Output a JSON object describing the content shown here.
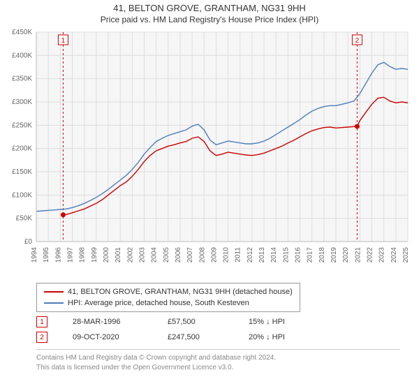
{
  "titles": {
    "main": "41, BELTON GROVE, GRANTHAM, NG31 9HH",
    "sub": "Price paid vs. HM Land Registry's House Price Index (HPI)"
  },
  "chart": {
    "type": "line",
    "background_color": "#f6f6f6",
    "plot_background": "#f6f6f6",
    "grid_color": "#dddddd",
    "axis_font_size": 10,
    "axis_color": "#666666",
    "y": {
      "label_prefix": "£",
      "min": 0,
      "max": 450000,
      "tick_step": 50000,
      "ticks": [
        "£0",
        "£50K",
        "£100K",
        "£150K",
        "£200K",
        "£250K",
        "£300K",
        "£350K",
        "£400K",
        "£450K"
      ]
    },
    "x": {
      "min": 1994,
      "max": 2025,
      "tick_step": 1,
      "ticks": [
        "1994",
        "1995",
        "1996",
        "1997",
        "1998",
        "1999",
        "2000",
        "2001",
        "2002",
        "2003",
        "2004",
        "2005",
        "2006",
        "2007",
        "2008",
        "2009",
        "2010",
        "2011",
        "2012",
        "2013",
        "2014",
        "2015",
        "2016",
        "2017",
        "2018",
        "2019",
        "2020",
        "2021",
        "2022",
        "2023",
        "2024",
        "2025"
      ]
    },
    "series": [
      {
        "name": "price_paid",
        "label": "41, BELTON GROVE, GRANTHAM, NG31 9HH (detached house)",
        "color": "#cc0000",
        "line_width": 1.4,
        "data": [
          [
            1996.24,
            57500
          ],
          [
            1996.5,
            58000
          ],
          [
            1997,
            62000
          ],
          [
            1997.5,
            66000
          ],
          [
            1998,
            70000
          ],
          [
            1998.5,
            76000
          ],
          [
            1999,
            82000
          ],
          [
            1999.5,
            90000
          ],
          [
            2000,
            100000
          ],
          [
            2000.5,
            110000
          ],
          [
            2001,
            120000
          ],
          [
            2001.5,
            128000
          ],
          [
            2002,
            140000
          ],
          [
            2002.5,
            155000
          ],
          [
            2003,
            172000
          ],
          [
            2003.5,
            185000
          ],
          [
            2004,
            195000
          ],
          [
            2004.5,
            200000
          ],
          [
            2005,
            205000
          ],
          [
            2005.5,
            208000
          ],
          [
            2006,
            212000
          ],
          [
            2006.5,
            215000
          ],
          [
            2007,
            222000
          ],
          [
            2007.5,
            225000
          ],
          [
            2008,
            215000
          ],
          [
            2008.5,
            195000
          ],
          [
            2009,
            185000
          ],
          [
            2009.5,
            188000
          ],
          [
            2010,
            192000
          ],
          [
            2010.5,
            190000
          ],
          [
            2011,
            188000
          ],
          [
            2011.5,
            186000
          ],
          [
            2012,
            185000
          ],
          [
            2012.5,
            187000
          ],
          [
            2013,
            190000
          ],
          [
            2013.5,
            195000
          ],
          [
            2014,
            200000
          ],
          [
            2014.5,
            205000
          ],
          [
            2015,
            212000
          ],
          [
            2015.5,
            218000
          ],
          [
            2016,
            225000
          ],
          [
            2016.5,
            232000
          ],
          [
            2017,
            238000
          ],
          [
            2017.5,
            242000
          ],
          [
            2018,
            245000
          ],
          [
            2018.5,
            246000
          ],
          [
            2019,
            244000
          ],
          [
            2019.5,
            245000
          ],
          [
            2020,
            246000
          ],
          [
            2020.5,
            247000
          ],
          [
            2020.77,
            247500
          ],
          [
            2021,
            260000
          ],
          [
            2021.5,
            278000
          ],
          [
            2022,
            295000
          ],
          [
            2022.5,
            308000
          ],
          [
            2023,
            310000
          ],
          [
            2023.5,
            302000
          ],
          [
            2024,
            298000
          ],
          [
            2024.5,
            300000
          ],
          [
            2025,
            298000
          ]
        ]
      },
      {
        "name": "hpi",
        "label": "HPI: Average price, detached house, South Kesteven",
        "color": "#4a7ebb",
        "line_width": 1.4,
        "data": [
          [
            1994,
            65000
          ],
          [
            1994.5,
            66000
          ],
          [
            1995,
            67000
          ],
          [
            1995.5,
            68000
          ],
          [
            1996,
            69000
          ],
          [
            1996.5,
            70000
          ],
          [
            1997,
            73000
          ],
          [
            1997.5,
            77000
          ],
          [
            1998,
            82000
          ],
          [
            1998.5,
            88000
          ],
          [
            1999,
            95000
          ],
          [
            1999.5,
            103000
          ],
          [
            2000,
            112000
          ],
          [
            2000.5,
            122000
          ],
          [
            2001,
            132000
          ],
          [
            2001.5,
            142000
          ],
          [
            2002,
            155000
          ],
          [
            2002.5,
            170000
          ],
          [
            2003,
            188000
          ],
          [
            2003.5,
            202000
          ],
          [
            2004,
            215000
          ],
          [
            2004.5,
            222000
          ],
          [
            2005,
            228000
          ],
          [
            2005.5,
            232000
          ],
          [
            2006,
            236000
          ],
          [
            2006.5,
            240000
          ],
          [
            2007,
            248000
          ],
          [
            2007.5,
            252000
          ],
          [
            2008,
            240000
          ],
          [
            2008.5,
            218000
          ],
          [
            2009,
            208000
          ],
          [
            2009.5,
            212000
          ],
          [
            2010,
            216000
          ],
          [
            2010.5,
            214000
          ],
          [
            2011,
            212000
          ],
          [
            2011.5,
            210000
          ],
          [
            2012,
            210000
          ],
          [
            2012.5,
            212000
          ],
          [
            2013,
            216000
          ],
          [
            2013.5,
            222000
          ],
          [
            2014,
            230000
          ],
          [
            2014.5,
            238000
          ],
          [
            2015,
            246000
          ],
          [
            2015.5,
            254000
          ],
          [
            2016,
            262000
          ],
          [
            2016.5,
            272000
          ],
          [
            2017,
            280000
          ],
          [
            2017.5,
            286000
          ],
          [
            2018,
            290000
          ],
          [
            2018.5,
            292000
          ],
          [
            2019,
            292000
          ],
          [
            2019.5,
            295000
          ],
          [
            2020,
            298000
          ],
          [
            2020.5,
            302000
          ],
          [
            2021,
            318000
          ],
          [
            2021.5,
            340000
          ],
          [
            2022,
            362000
          ],
          [
            2022.5,
            380000
          ],
          [
            2023,
            385000
          ],
          [
            2023.5,
            376000
          ],
          [
            2024,
            370000
          ],
          [
            2024.5,
            372000
          ],
          [
            2025,
            370000
          ]
        ]
      }
    ],
    "sale_markers": [
      {
        "id": "1",
        "x": 1996.24,
        "y": 57500,
        "vline_color": "#cc0000"
      },
      {
        "id": "2",
        "x": 2020.77,
        "y": 247500,
        "vline_color": "#cc0000"
      }
    ],
    "sale_point_color": "#cc0000",
    "sale_point_radius": 3.5,
    "marker_box_border": "#cc0000",
    "vline_dash": "3,3"
  },
  "legend": {
    "series1": "41, BELTON GROVE, GRANTHAM, NG31 9HH (detached house)",
    "series2": "HPI: Average price, detached house, South Kesteven"
  },
  "sales_table": {
    "rows": [
      {
        "id": "1",
        "date": "28-MAR-1996",
        "price": "£57,500",
        "delta": "15% ↓ HPI"
      },
      {
        "id": "2",
        "date": "09-OCT-2020",
        "price": "£247,500",
        "delta": "20% ↓ HPI"
      }
    ]
  },
  "footer": {
    "line1": "Contains HM Land Registry data © Crown copyright and database right 2024.",
    "line2": "This data is licensed under the Open Government Licence v3.0."
  }
}
